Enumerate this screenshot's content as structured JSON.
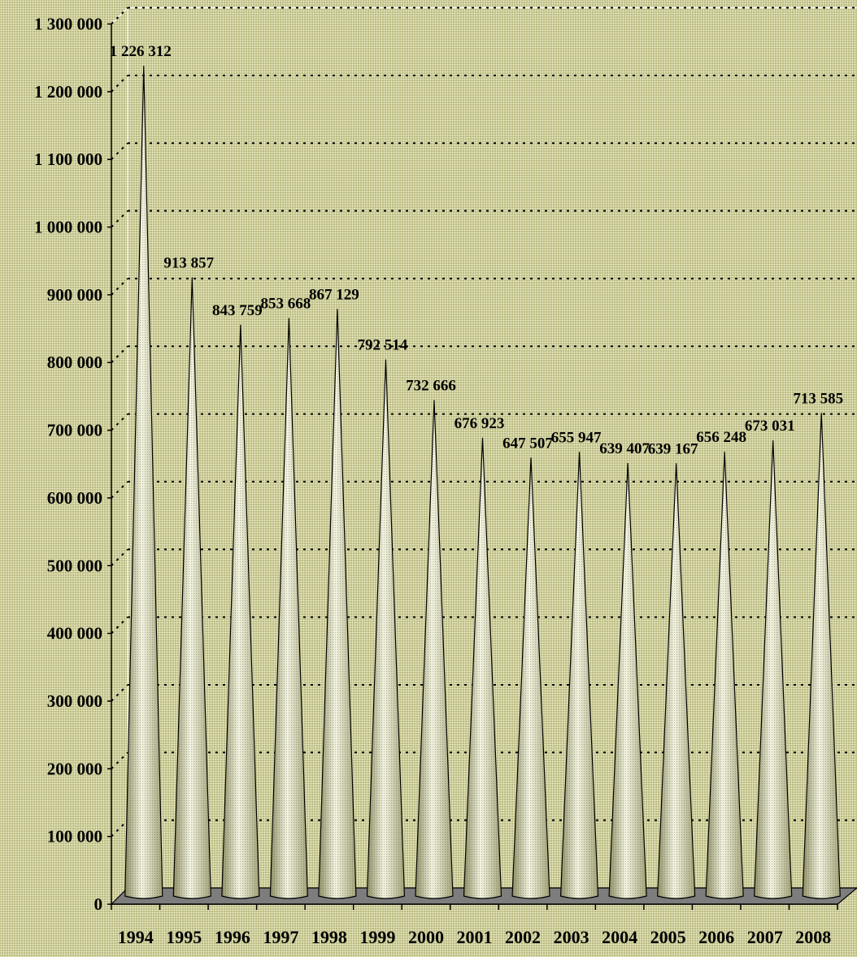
{
  "chart_data": {
    "type": "bar",
    "bar_shape": "cone",
    "categories": [
      "1994",
      "1995",
      "1996",
      "1997",
      "1998",
      "1999",
      "2000",
      "2001",
      "2002",
      "2003",
      "2004",
      "2005",
      "2006",
      "2007",
      "2008"
    ],
    "values": [
      1226312,
      913857,
      843759,
      853668,
      867129,
      792514,
      732666,
      676923,
      647507,
      655947,
      639407,
      639167,
      656248,
      673031,
      713585
    ],
    "value_labels": [
      "1 226 312",
      "913 857",
      "843 759",
      "853 668",
      "867 129",
      "792 514",
      "732 666",
      "676 923",
      "647 507",
      "655 947",
      "639 407",
      "639 167",
      "656 248",
      "673 031",
      "713 585"
    ],
    "y_ticks": [
      0,
      100000,
      200000,
      300000,
      400000,
      500000,
      600000,
      700000,
      800000,
      900000,
      1000000,
      1100000,
      1200000,
      1300000
    ],
    "y_tick_labels": [
      "0",
      "100 000",
      "200 000",
      "300 000",
      "400 000",
      "500 000",
      "600 000",
      "700 000",
      "800 000",
      "900 000",
      "1 000 000",
      "1 100 000",
      "1 200 000",
      "1 300 000"
    ],
    "ylim": [
      0,
      1300000
    ],
    "title": "",
    "xlabel": "",
    "ylabel": "",
    "grid": "dotted horizontal",
    "legend": "none",
    "colors": {
      "background": "#cfcf9a",
      "cone_light": "#f4f4e2",
      "cone_dark": "#8f8f66",
      "floor": "#7d7d7d",
      "gridline": "#000000"
    }
  }
}
